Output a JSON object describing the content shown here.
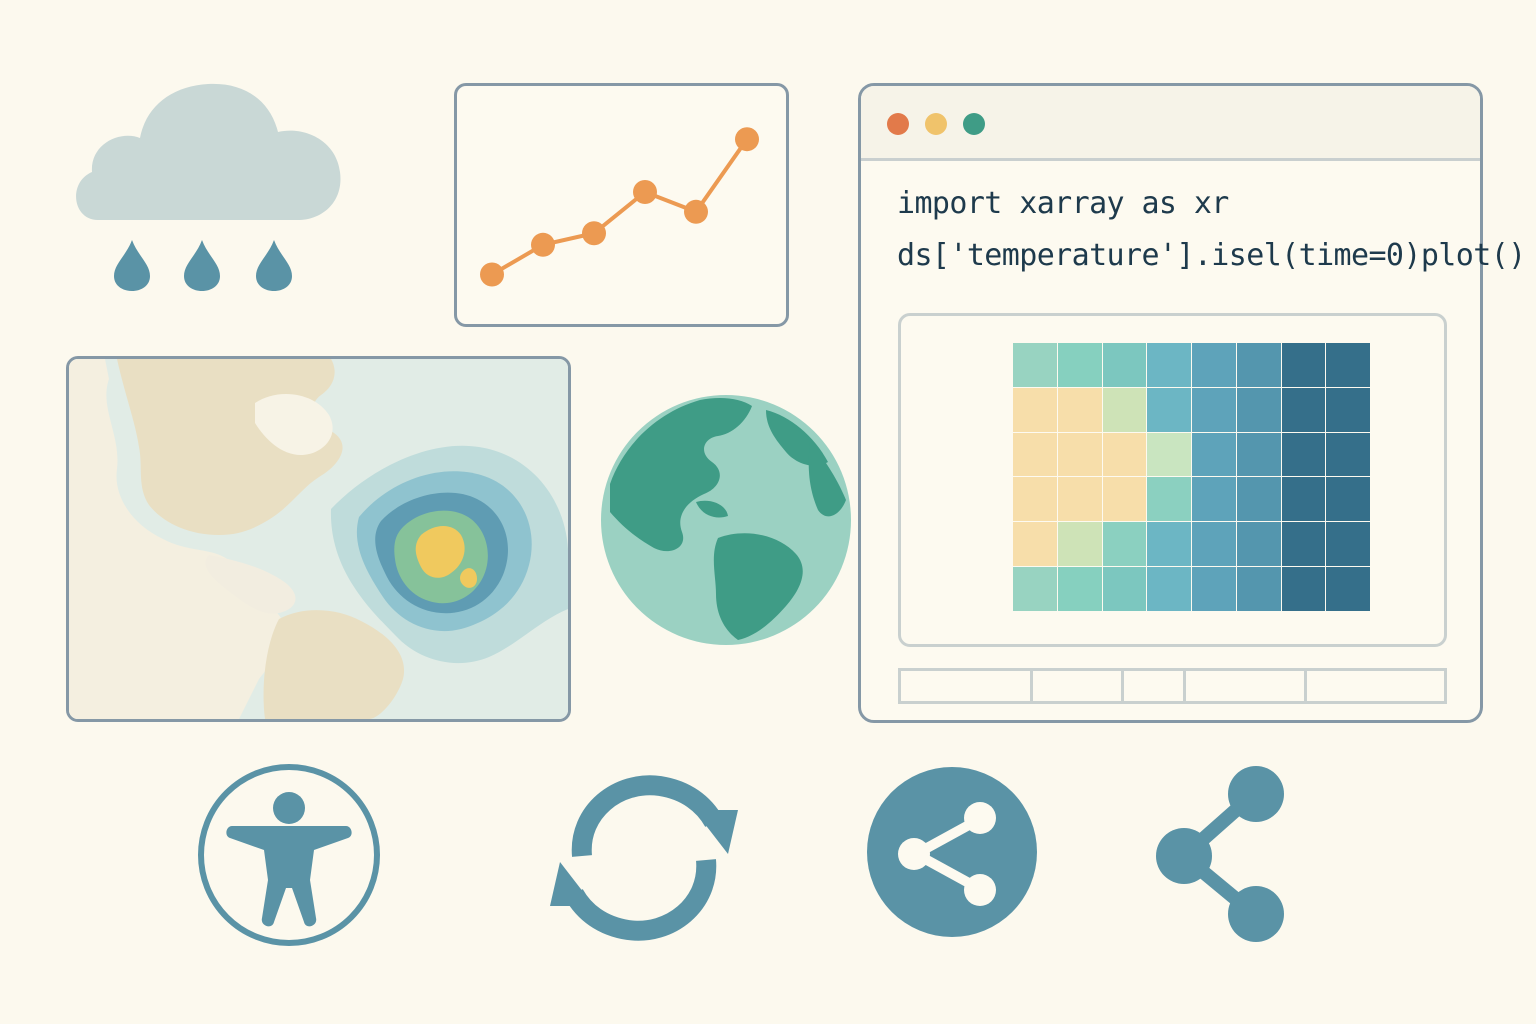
{
  "code": {
    "line1": "import xarray as xr",
    "line2": "ds['temperature'].isel(time=0)plot()"
  },
  "window_controls": [
    "close",
    "minimize",
    "maximize"
  ],
  "icons": [
    "rain-cloud-icon",
    "line-chart-icon",
    "map-icon",
    "globe-icon",
    "accessibility-icon",
    "refresh-icon",
    "share-circle-icon",
    "share-icon"
  ],
  "colors": {
    "background": "#fcf9ee",
    "accent_teal": "#5a93a6",
    "accent_orange": "#ec9a52",
    "window_red": "#e27a4a",
    "window_yellow": "#f0c36b",
    "window_green": "#3f9c86"
  },
  "chart_data": {
    "type": "line",
    "x": [
      1,
      2,
      3,
      4,
      5,
      6
    ],
    "values": [
      1.0,
      2.8,
      3.5,
      6.0,
      4.8,
      9.2
    ],
    "ylim": [
      0,
      10
    ],
    "grid": false
  },
  "heatmap": {
    "colors": [
      [
        "#98d3c1",
        "#86d0bf",
        "#7cc7bf",
        "#6cb6c4",
        "#5ea3ba",
        "#5496ae",
        "#356f8a",
        "#356f8a"
      ],
      [
        "#f7deaa",
        "#f7deaa",
        "#cee3b7",
        "#6cb6c4",
        "#5ea3ba",
        "#5496ae",
        "#356f8a",
        "#356f8a"
      ],
      [
        "#f7deaa",
        "#f7deaa",
        "#f7deaa",
        "#c9e5c0",
        "#5ea3ba",
        "#5496ae",
        "#356f8a",
        "#356f8a"
      ],
      [
        "#f7deaa",
        "#f7deaa",
        "#f7deaa",
        "#8bd0c0",
        "#5ea3ba",
        "#5496ae",
        "#356f8a",
        "#356f8a"
      ],
      [
        "#f7deaa",
        "#cee3b7",
        "#8bd0c0",
        "#6cb6c4",
        "#5ea3ba",
        "#5496ae",
        "#356f8a",
        "#356f8a"
      ],
      [
        "#98d3c1",
        "#86d0bf",
        "#7cc7bf",
        "#6cb6c4",
        "#5ea3ba",
        "#5496ae",
        "#356f8a",
        "#356f8a"
      ]
    ]
  }
}
